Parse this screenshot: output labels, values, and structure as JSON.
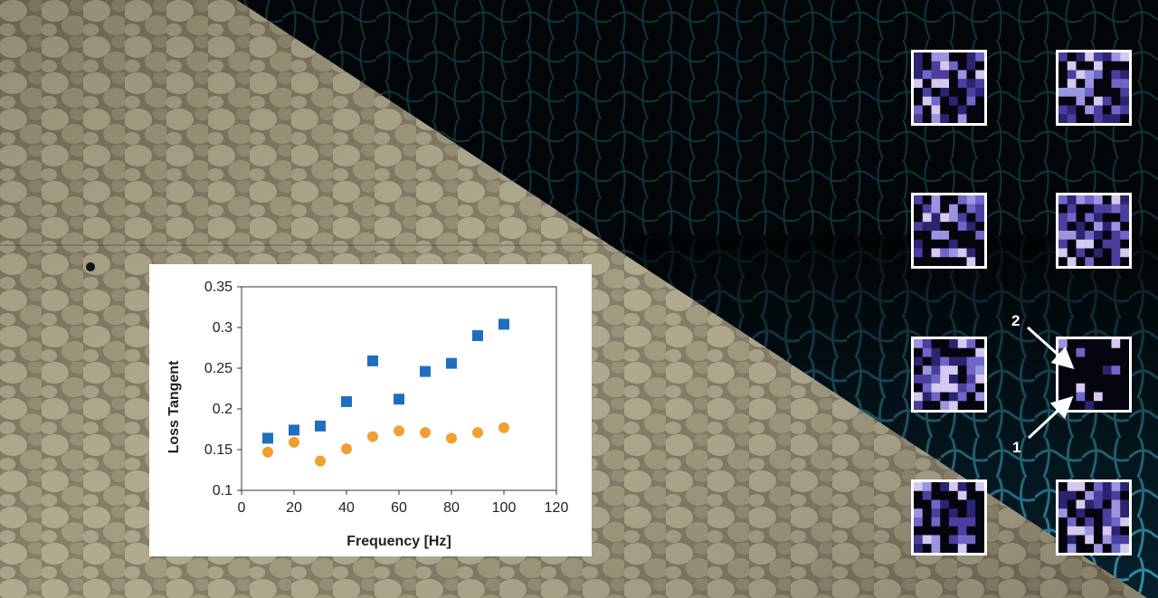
{
  "chart_data": {
    "type": "scatter",
    "title": "",
    "xlabel": "Frequency [Hz]",
    "ylabel": "Loss Tangent",
    "xlim": [
      0,
      120
    ],
    "ylim": [
      0.1,
      0.35
    ],
    "x_ticks": [
      "0",
      "20",
      "40",
      "60",
      "80",
      "100",
      "120"
    ],
    "y_ticks": [
      "0.1",
      "0.15",
      "0.2",
      "0.25",
      "0.3",
      "0.35"
    ],
    "grid": false,
    "legend": "none",
    "series": [
      {
        "marker": "square",
        "color": "#1f6fbf",
        "x": [
          10,
          20,
          30,
          40,
          50,
          60,
          70,
          80,
          90,
          100
        ],
        "y": [
          0.164,
          0.174,
          0.179,
          0.209,
          0.259,
          0.212,
          0.246,
          0.256,
          0.29,
          0.304
        ]
      },
      {
        "marker": "circle",
        "color": "#f0a030",
        "x": [
          10,
          20,
          30,
          40,
          50,
          60,
          70,
          80,
          90,
          100
        ],
        "y": [
          0.147,
          0.159,
          0.136,
          0.151,
          0.166,
          0.173,
          0.171,
          0.164,
          0.171,
          0.177
        ]
      }
    ]
  },
  "callouts": {
    "one": "1",
    "two": "2"
  },
  "colors": {
    "tile_border": "#ffffff",
    "tile_palette": [
      "#05050f",
      "#2b2470",
      "#4a3f9e",
      "#6f66c8",
      "#9c94e0",
      "#d6c9f0"
    ]
  }
}
